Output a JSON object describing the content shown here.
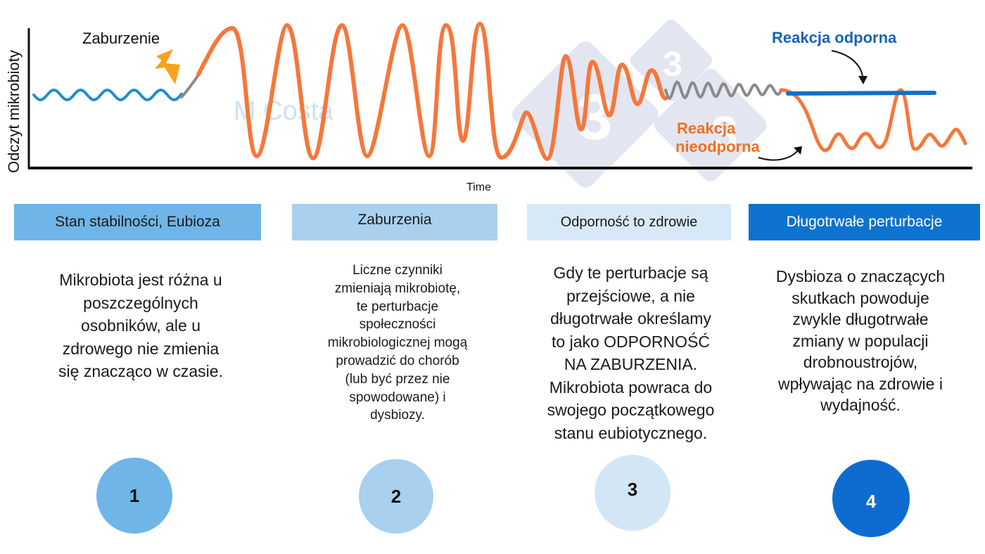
{
  "diagram": {
    "y_axis_label": "Odczyt mikrobioty",
    "x_axis_label": "Time",
    "disturbance_label": "Zaburzenie",
    "resilient_label": "Reakcja odporna",
    "non_resilient_label_line1": "Reakcja",
    "non_resilient_label_line2": "nieodporna",
    "watermark_text": "M Costa",
    "logo_glyph": "3",
    "colors": {
      "stable_wave": "#1f8ed1",
      "disturbed_wave": "#f6773a",
      "transition_wave": "#8a8a8a",
      "resilient_line": "#1170c4",
      "resilient_label": "#1763b7",
      "non_resilient_label": "#f07021",
      "bolt": "#f7a21b",
      "watermark": "#cfe2f3",
      "logo_watermark": "#cdd3e6"
    }
  },
  "stages": [
    {
      "number": "1",
      "title": "Stan stabilności, Eubioza",
      "description": [
        "Mikrobiota jest różna u",
        "poszczególnych",
        "osobników, ale u",
        "zdrowego nie zmienia",
        "się znacząco w czasie."
      ],
      "header_color": "#6fb5e7",
      "circle_color": "#6fb5e7",
      "text_color": "#1a1a1a",
      "number_color": "#111111"
    },
    {
      "number": "2",
      "title": "Zaburzenia",
      "description": [
        "Liczne czynniki",
        "zmieniają mikrobiotę,",
        "te perturbacje",
        "społeczności",
        "mikrobiologicznej mogą",
        "prowadzić do chorób",
        "(lub być przez nie",
        "spowodowane) i",
        "dysbiozy."
      ],
      "header_color": "#a9d0ef",
      "circle_color": "#a9d0ef",
      "text_color": "#1a1a1a",
      "number_color": "#111111"
    },
    {
      "number": "3",
      "title": "Odporność to zdrowie",
      "description": [
        "Gdy te perturbacje są",
        "przejściowe, a nie",
        "długotrwałe określamy",
        "to jako ODPORNOŚĆ",
        "NA ZABURZENIA.",
        "Mikrobiota powraca do",
        "swojego początkowego",
        "stanu eubiotycznego."
      ],
      "header_color": "#d7e9f7",
      "circle_color": "#d3e6f6",
      "text_color": "#1a1a1a",
      "number_color": "#111111"
    },
    {
      "number": "4",
      "title": "Długotrwałe perturbacje",
      "description": [
        "Dysbioza o znaczących",
        "skutkach powoduje",
        "zwykle długotrwałe",
        "zmiany w populacji",
        "drobnoustrojów,",
        "wpływając na zdrowie i",
        "wydajność."
      ],
      "header_color": "#0e72cf",
      "circle_color": "#0e6cd0",
      "text_color": "#ffffff",
      "number_color": "#ffffff"
    }
  ]
}
